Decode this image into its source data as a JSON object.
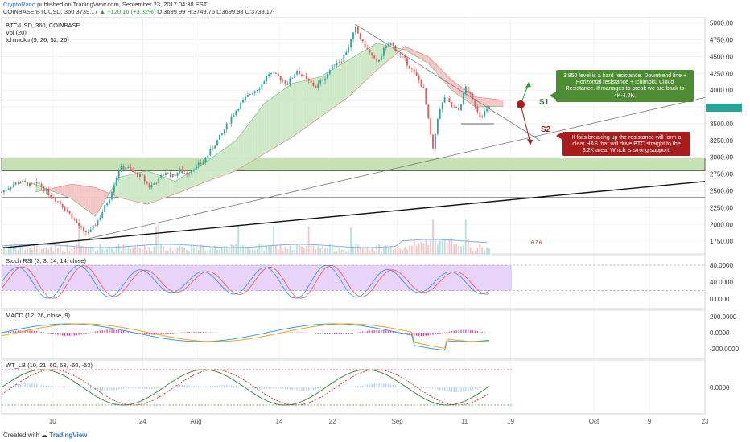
{
  "header": {
    "line1_user": "CryptoRand",
    "line1_rest": " published on TradingView.com, September 23, 2017 04:38 EST",
    "line2_symbol": "COINBASE:BTCUSD, 360  3739.17",
    "line2_change": " ▲ +120.16 (+3.32%)",
    "line2_ohlc": " O:3699.99 H:3749.76 L:3699.98 C:3739.17"
  },
  "legend": {
    "symbol": "BTC/USD, 360, COINBASE",
    "vol": "Vol (20)",
    "ichimoku": "Ichimoku (9, 26, 52, 26)"
  },
  "panes": {
    "stoch": "Stoch RSI (3, 3, 14, 14, close)",
    "macd": "MACD (12, 26, close, 9)",
    "wt": "WT_LB (10, 21, 60, 53, -60, -53)"
  },
  "annotations": {
    "s1": "S1",
    "s2": "S2",
    "green_callout": "3.850 level is a hard resistance. Downtrend line + Horizontal resistance + Ichimoku Cloud Resistance. If manages to break we are back to 4K-4.2K.",
    "red_callout": "If fails breaking up the resistance will form a clear H&S that will drive BTC straight to the 3.2K area. Which is strong support.",
    "events_badge": "6 7 6"
  },
  "footer": {
    "prefix": "Created with",
    "brand": "TradingView"
  },
  "colors": {
    "up": "#26a69a",
    "down": "#ef5350",
    "cloud_green": "#cfe8c8",
    "cloud_red": "#f5c6c6",
    "support_zone": "#c6e2b4",
    "stoch_band": "#e2c8f7"
  },
  "chart_data": {
    "type": "candlestick",
    "title": "BTC/USD, 360, COINBASE",
    "x_ticks": [
      "10",
      "24",
      "Aug",
      "14",
      "22",
      "Sep",
      "11",
      "19",
      "Oct",
      "9",
      "23"
    ],
    "price_axis": {
      "ticks": [
        1750,
        2000,
        2250,
        2500,
        2750,
        3000,
        3250,
        3500,
        3750,
        4000,
        4250,
        4500,
        4750,
        5000
      ],
      "tick_labels": [
        "1750.00",
        "2000.00",
        "2250.00",
        "2500.00",
        "2750.00",
        "3000.00",
        "3250.00",
        "3500.00",
        "3750.00",
        "4000.00",
        "4250.00",
        "4500.00",
        "4750.00",
        "5000.00"
      ],
      "range": [
        1560,
        5080
      ]
    },
    "last_price": 3739.17,
    "price_path": [
      [
        0,
        2480
      ],
      [
        4,
        2580
      ],
      [
        8,
        2640
      ],
      [
        12,
        2580
      ],
      [
        16,
        2600
      ],
      [
        20,
        2460
      ],
      [
        24,
        2350
      ],
      [
        28,
        2200
      ],
      [
        32,
        2020
      ],
      [
        35,
        1880
      ],
      [
        38,
        1900
      ],
      [
        42,
        2120
      ],
      [
        46,
        2400
      ],
      [
        50,
        2820
      ],
      [
        53,
        2860
      ],
      [
        56,
        2780
      ],
      [
        60,
        2700
      ],
      [
        63,
        2560
      ],
      [
        66,
        2640
      ],
      [
        70,
        2780
      ],
      [
        73,
        2720
      ],
      [
        76,
        2800
      ],
      [
        79,
        2760
      ],
      [
        82,
        2840
      ],
      [
        86,
        2930
      ],
      [
        90,
        3150
      ],
      [
        94,
        3350
      ],
      [
        98,
        3600
      ],
      [
        102,
        3800
      ],
      [
        106,
        3950
      ],
      [
        110,
        4050
      ],
      [
        114,
        4250
      ],
      [
        118,
        4200
      ],
      [
        122,
        4100
      ],
      [
        126,
        4300
      ],
      [
        130,
        4150
      ],
      [
        134,
        4050
      ],
      [
        138,
        4200
      ],
      [
        142,
        4400
      ],
      [
        145,
        4450
      ],
      [
        148,
        4650
      ],
      [
        151,
        4920
      ],
      [
        154,
        4700
      ],
      [
        157,
        4550
      ],
      [
        160,
        4400
      ],
      [
        163,
        4600
      ],
      [
        166,
        4700
      ],
      [
        169,
        4560
      ],
      [
        172,
        4450
      ],
      [
        175,
        4300
      ],
      [
        178,
        4150
      ],
      [
        180,
        4000
      ],
      [
        182,
        3550
      ],
      [
        184,
        3100
      ],
      [
        186,
        3600
      ],
      [
        189,
        3900
      ],
      [
        192,
        3750
      ],
      [
        195,
        3700
      ],
      [
        198,
        4050
      ],
      [
        201,
        3850
      ],
      [
        204,
        3620
      ],
      [
        207,
        3700
      ],
      [
        208,
        3739
      ]
    ],
    "ichimoku_cloud": {
      "span_a": [
        [
          14,
          2600
        ],
        [
          30,
          2380
        ],
        [
          40,
          2120
        ],
        [
          50,
          2700
        ],
        [
          62,
          2800
        ],
        [
          74,
          2640
        ],
        [
          86,
          2900
        ],
        [
          100,
          3250
        ],
        [
          112,
          3800
        ],
        [
          124,
          4100
        ],
        [
          136,
          4200
        ],
        [
          148,
          4450
        ],
        [
          160,
          4700
        ],
        [
          172,
          4600
        ],
        [
          182,
          4400
        ],
        [
          192,
          4000
        ],
        [
          202,
          3750
        ],
        [
          214,
          3760
        ]
      ],
      "span_b": [
        [
          14,
          2480
        ],
        [
          30,
          2600
        ],
        [
          40,
          2550
        ],
        [
          50,
          2400
        ],
        [
          62,
          2300
        ],
        [
          74,
          2450
        ],
        [
          86,
          2620
        ],
        [
          100,
          2800
        ],
        [
          112,
          3050
        ],
        [
          124,
          3300
        ],
        [
          136,
          3600
        ],
        [
          148,
          3900
        ],
        [
          160,
          4300
        ],
        [
          172,
          4650
        ],
        [
          182,
          4500
        ],
        [
          192,
          4150
        ],
        [
          202,
          3900
        ],
        [
          214,
          3850
        ]
      ]
    },
    "support_zone": [
      2800,
      2990
    ],
    "horizontal_lines": [
      3500,
      3850,
      2400
    ],
    "trendlines": [
      {
        "name": "Downtrend",
        "from": [
          151,
          4980
        ],
        "to": [
          230,
          3240
        ]
      },
      {
        "name": "Ascending support",
        "from": [
          36,
          1780
        ],
        "to": [
          300,
          3890
        ]
      },
      {
        "name": "Long support",
        "from": [
          0,
          1650
        ],
        "to": [
          300,
          2640
        ]
      }
    ],
    "stoch_rsi": {
      "ticks": [
        0,
        40,
        80
      ],
      "tick_labels": [
        "0.0000",
        "40.0000",
        "80.0000"
      ],
      "band": [
        20,
        80
      ]
    },
    "macd": {
      "ticks": [
        -200,
        0,
        200
      ],
      "tick_labels": [
        "-200.0000",
        "0.0000",
        "200.0000"
      ]
    },
    "wt_lb": {
      "ticks": [
        0
      ],
      "tick_labels": [
        "0.0000"
      ],
      "levels": [
        60,
        -60
      ]
    }
  }
}
